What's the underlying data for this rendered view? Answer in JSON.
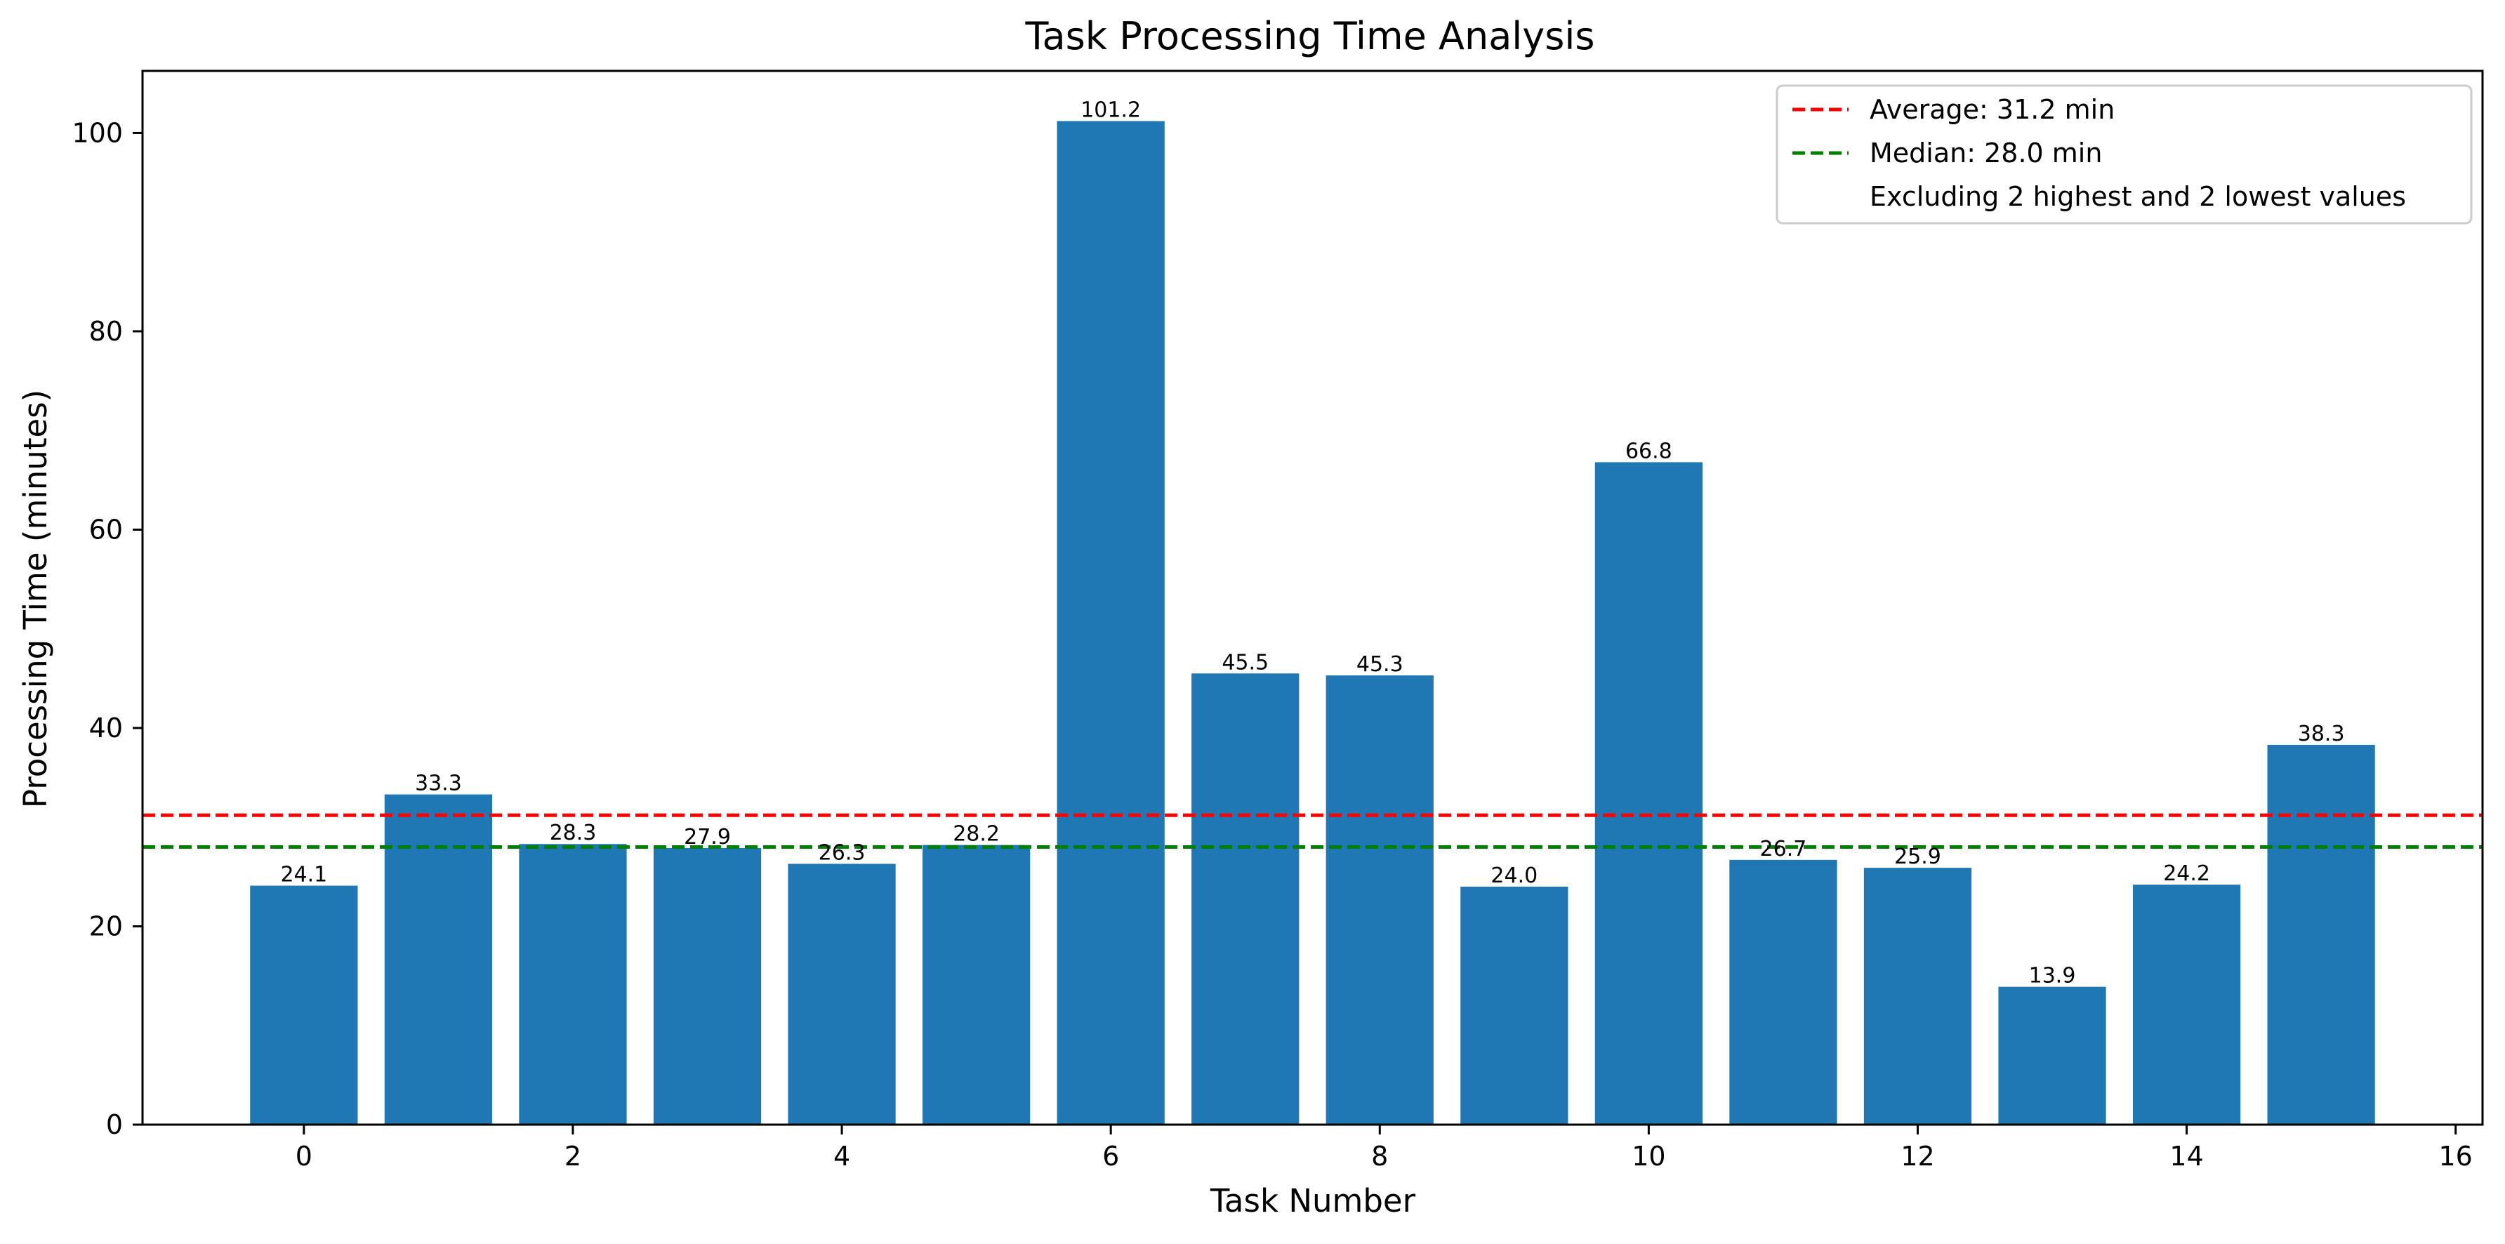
{
  "chart_data": {
    "type": "bar",
    "title": "Task Processing Time Analysis",
    "xlabel": "Task Number",
    "ylabel": "Processing Time (minutes)",
    "x": [
      0,
      1,
      2,
      3,
      4,
      5,
      6,
      7,
      8,
      9,
      10,
      11,
      12,
      13,
      14,
      15
    ],
    "values": [
      24.1,
      33.3,
      28.3,
      27.9,
      26.3,
      28.2,
      101.2,
      45.5,
      45.3,
      24.0,
      66.8,
      26.7,
      25.9,
      13.9,
      24.2,
      38.3
    ],
    "value_labels": [
      "24.1",
      "33.3",
      "28.3",
      "27.9",
      "26.3",
      "28.2",
      "101.2",
      "45.5",
      "45.3",
      "24.0",
      "66.8",
      "26.7",
      "25.9",
      "13.9",
      "24.2",
      "38.3"
    ],
    "bar_color": "#1f77b4",
    "xlim": [
      -1.2,
      16.2
    ],
    "ylim": [
      0,
      106.26
    ],
    "xticks": [
      0,
      2,
      4,
      6,
      8,
      10,
      12,
      14,
      16
    ],
    "yticks": [
      0,
      20,
      40,
      60,
      80,
      100
    ],
    "reference_lines": [
      {
        "name": "Average: 31.2 min",
        "value": 31.2,
        "color": "#ff0000",
        "style": "dashed"
      },
      {
        "name": "Median: 28.0 min",
        "value": 28.0,
        "color": "#008000",
        "style": "dashed"
      }
    ],
    "legend": {
      "placement": "top-right",
      "entries": [
        {
          "label": "Average: 31.2 min",
          "color": "#ff0000",
          "style": "dashed"
        },
        {
          "label": "Median: 28.0 min",
          "color": "#008000",
          "style": "dashed"
        },
        {
          "label": "Excluding 2 highest and 2 lowest values",
          "color": "",
          "style": "none"
        }
      ]
    },
    "grid": false
  }
}
